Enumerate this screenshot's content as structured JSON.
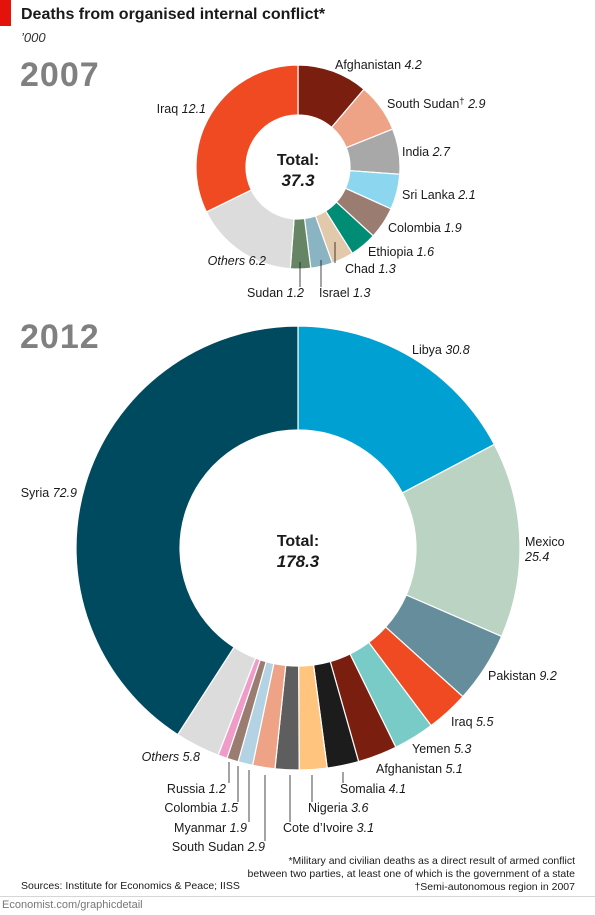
{
  "title": "Deaths from organised internal conflict*",
  "unit": "’000",
  "footnote": {
    "lines": [
      "*Military and civilian deaths as a direct result of armed conflict",
      "between two parties, at least one of which is the government of a state",
      "†Semi-autonomous region in 2007"
    ]
  },
  "sources": "Sources: Institute for Economics & Peace; IISS",
  "credit": "Economist.com/graphicdetail",
  "chart_data": [
    {
      "type": "donut",
      "year_label": "2007",
      "total_label": "Total:",
      "total_value": "37.3",
      "slices": [
        {
          "name": "Afghanistan",
          "value": 4.2,
          "color": "#7a1e10"
        },
        {
          "name": "South Sudan",
          "mark": "†",
          "value": 2.9,
          "color": "#eea286"
        },
        {
          "name": "India",
          "value": 2.7,
          "color": "#a8a8a8"
        },
        {
          "name": "Sri Lanka",
          "value": 2.1,
          "color": "#8cd7ef"
        },
        {
          "name": "Colombia",
          "value": 1.9,
          "color": "#9a7d70"
        },
        {
          "name": "Ethiopia",
          "value": 1.6,
          "color": "#008c75"
        },
        {
          "name": "Chad",
          "value": 1.3,
          "color": "#e2c9ab"
        },
        {
          "name": "Israel",
          "value": 1.3,
          "color": "#8ab4c2"
        },
        {
          "name": "Sudan",
          "value": 1.2,
          "color": "#668565"
        },
        {
          "name": "Others",
          "value": 6.2,
          "color": "#dcdcdc",
          "italic": true
        },
        {
          "name": "Iraq",
          "value": 12.1,
          "color": "#f04a23"
        }
      ]
    },
    {
      "type": "donut",
      "year_label": "2012",
      "total_label": "Total:",
      "total_value": "178.3",
      "slices": [
        {
          "name": "Libya",
          "value": 30.8,
          "color": "#00a0d2"
        },
        {
          "name": "Mexico",
          "value": 25.4,
          "color": "#bad3c2"
        },
        {
          "name": "Pakistan",
          "value": 9.2,
          "color": "#668d9c"
        },
        {
          "name": "Iraq",
          "value": 5.5,
          "color": "#f04a23"
        },
        {
          "name": "Yemen",
          "value": 5.3,
          "color": "#78cbc6"
        },
        {
          "name": "Afghanistan",
          "value": 5.1,
          "color": "#7a1e10"
        },
        {
          "name": "Somalia",
          "value": 4.1,
          "color": "#1c1c1c"
        },
        {
          "name": "Nigeria",
          "value": 3.6,
          "color": "#ffc57e"
        },
        {
          "name": "Cote d’Ivoire",
          "value": 3.1,
          "color": "#5e5e5e"
        },
        {
          "name": "South Sudan",
          "value": 2.9,
          "color": "#eea286"
        },
        {
          "name": "Myanmar",
          "value": 1.9,
          "color": "#b3d2e3"
        },
        {
          "name": "Colombia",
          "value": 1.5,
          "color": "#9a7d70"
        },
        {
          "name": "Russia",
          "value": 1.2,
          "color": "#ef9cc9"
        },
        {
          "name": "Others",
          "value": 5.8,
          "color": "#dcdcdc",
          "italic": true
        },
        {
          "name": "Syria",
          "value": 72.9,
          "color": "#004a60"
        }
      ]
    }
  ]
}
